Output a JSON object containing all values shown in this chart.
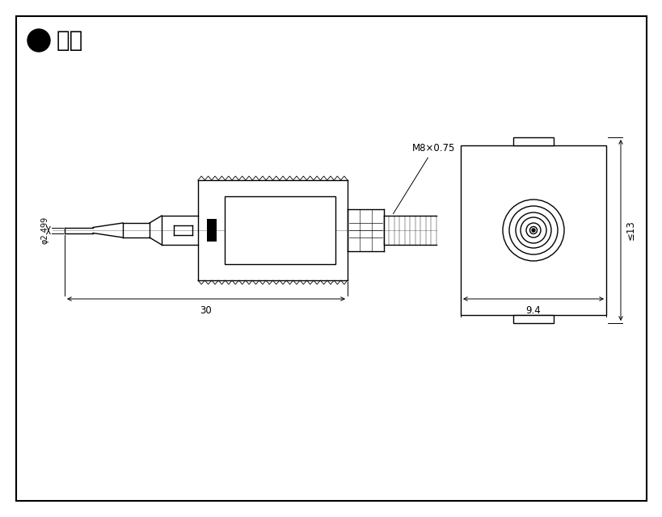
{
  "bg_color": "#ffffff",
  "line_color": "#000000",
  "fig_width": 8.2,
  "fig_height": 6.4,
  "dpi": 100,
  "dim_30_label": "30",
  "dim_9_4_label": "9.4",
  "dim_phi_label": "φ2.499",
  "dim_s13_label": "≤13",
  "thread_label": "M8×0.75",
  "title_text": "寸法"
}
